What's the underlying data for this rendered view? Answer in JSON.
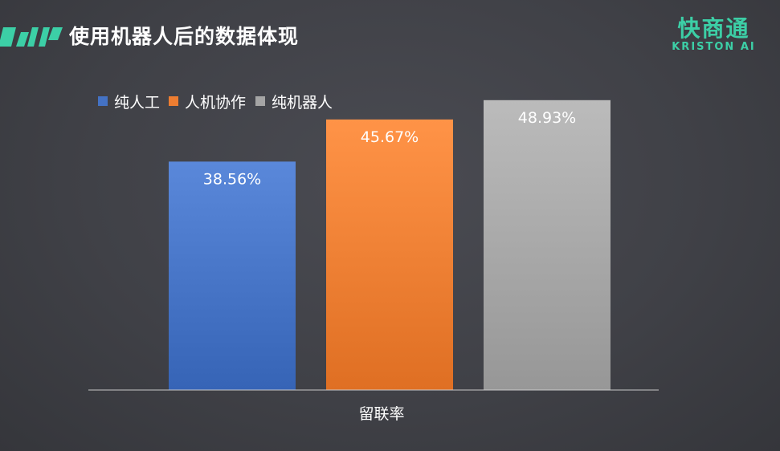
{
  "header": {
    "title": "使用机器人后的数据体现",
    "logo_cn": "快商通",
    "logo_en": "KRISTON AI"
  },
  "colors": {
    "accent": "#3ccfa6",
    "series": [
      "#4472c4",
      "#ed7d31",
      "#a5a5a5"
    ]
  },
  "chart_data": {
    "type": "bar",
    "categories": [
      "留联率"
    ],
    "series": [
      {
        "name": "纯人工",
        "values": [
          38.56
        ],
        "label": "38.56%"
      },
      {
        "name": "人机协作",
        "values": [
          45.67
        ],
        "label": "45.67%"
      },
      {
        "name": "纯机器人",
        "values": [
          48.93
        ],
        "label": "48.93%"
      }
    ],
    "unit": "%",
    "ylim": [
      0,
      55
    ],
    "grid": false,
    "legend": "top-left"
  }
}
